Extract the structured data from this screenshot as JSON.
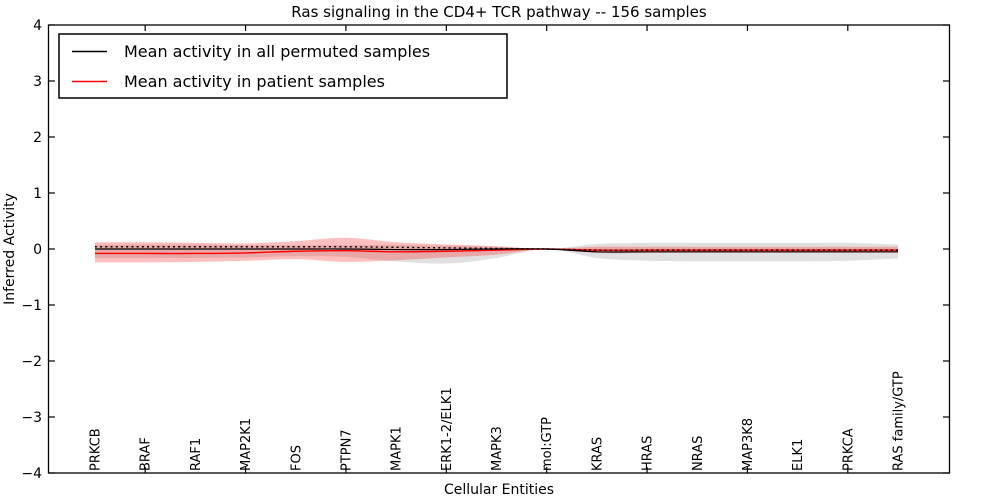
{
  "chart_data": {
    "type": "line",
    "title": "Ras signaling in the CD4+ TCR pathway -- 156 samples",
    "xlabel": "Cellular Entities",
    "ylabel": "Inferred Activity",
    "ylim": [
      -4,
      4
    ],
    "grid": false,
    "legend_position": "upper left",
    "y_axis": {
      "tick_values": [
        4,
        3,
        2,
        1,
        0,
        -1,
        -2,
        -3,
        -4
      ],
      "tick_labels": [
        "4",
        "3",
        "2",
        "1",
        "0",
        "−1",
        "−2",
        "−3",
        "−4"
      ]
    },
    "x_axis": {
      "categories": [
        "PRKCB",
        "BRAF",
        "RAF1",
        "MAP2K1",
        "FOS",
        "PTPN7",
        "MAPK1",
        "ERK1-2/ELK1",
        "MAPK3",
        "mol:GTP",
        "KRAS",
        "HRAS",
        "NRAS",
        "MAP3K8",
        "ELK1",
        "PRKCA",
        "RAS family/GTP"
      ],
      "axis_tick_indices": [
        1,
        3,
        5,
        7,
        9,
        11,
        13,
        15
      ]
    },
    "legend": {
      "entries": [
        {
          "label": "Mean activity in all permuted samples",
          "color": "#000000"
        },
        {
          "label": "Mean activity in patient samples",
          "color": "#ff0000"
        }
      ]
    },
    "bands": [
      {
        "name": "permuted-band",
        "color": "#000000",
        "opacity": 0.12,
        "upper": [
          0.08,
          0.08,
          0.08,
          0.07,
          0.07,
          0.07,
          0.07,
          0.06,
          0.04,
          0.0,
          0.09,
          0.11,
          0.11,
          0.11,
          0.11,
          0.11,
          0.08
        ],
        "lower": [
          -0.16,
          -0.16,
          -0.16,
          -0.15,
          -0.13,
          -0.14,
          -0.22,
          -0.26,
          -0.16,
          0.0,
          -0.16,
          -0.21,
          -0.22,
          -0.22,
          -0.22,
          -0.21,
          -0.17
        ]
      },
      {
        "name": "patient-band",
        "color": "#ff0000",
        "opacity": 0.25,
        "upper": [
          0.12,
          0.12,
          0.11,
          0.1,
          0.14,
          0.2,
          0.12,
          0.08,
          0.05,
          0.0,
          0.04,
          0.04,
          0.04,
          0.04,
          0.04,
          0.04,
          0.04
        ],
        "lower": [
          -0.24,
          -0.24,
          -0.23,
          -0.21,
          -0.18,
          -0.23,
          -0.2,
          -0.15,
          -0.1,
          0.0,
          -0.07,
          -0.07,
          -0.07,
          -0.07,
          -0.07,
          -0.07,
          -0.07
        ]
      }
    ],
    "series": [
      {
        "name": "permuted-mean",
        "label": "Mean activity in all permuted samples",
        "style": "solid",
        "color": "#000000",
        "width": 1.2,
        "values": [
          0.0,
          0.0,
          0.0,
          0.0,
          0.0,
          0.0,
          -0.01,
          -0.01,
          0.0,
          0.0,
          -0.05,
          -0.05,
          -0.05,
          -0.05,
          -0.05,
          -0.05,
          -0.05
        ]
      },
      {
        "name": "zero-reference-dotted",
        "label": "",
        "style": "dotted",
        "color": "#000000",
        "width": 1.4,
        "values": [
          0.04,
          0.04,
          0.04,
          0.04,
          0.04,
          0.04,
          0.03,
          0.02,
          0.01,
          0.0,
          -0.02,
          -0.02,
          -0.02,
          -0.02,
          -0.02,
          -0.02,
          -0.02
        ]
      },
      {
        "name": "patient-mean",
        "label": "Mean activity in patient samples",
        "style": "solid",
        "color": "#ff0000",
        "width": 1.4,
        "values": [
          -0.08,
          -0.08,
          -0.08,
          -0.07,
          -0.04,
          -0.03,
          -0.05,
          -0.04,
          -0.02,
          0.0,
          -0.02,
          -0.02,
          -0.02,
          -0.02,
          -0.02,
          -0.02,
          -0.02
        ]
      }
    ]
  }
}
